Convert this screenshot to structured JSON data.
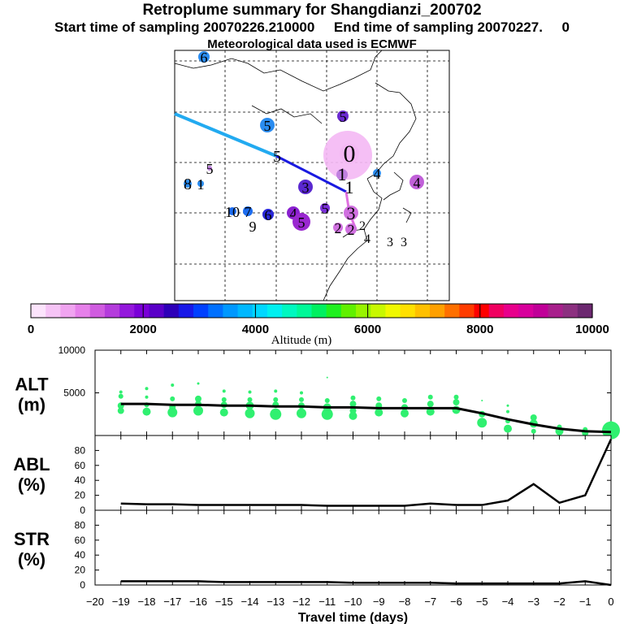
{
  "header": {
    "title": "Retroplume summary for Shangdianzi_200702",
    "times": "Start time of sampling 20070226.210000     End time of sampling 20070227.     0",
    "met": "Meteorological data used is ECMWF"
  },
  "colorbar": {
    "label": "Altitude (m)",
    "min": 0,
    "max": 10000,
    "tick_labels": [
      "0",
      "2000",
      "4000",
      "6000",
      "8000",
      "10000"
    ],
    "tick_values": [
      0,
      2000,
      4000,
      6000,
      8000,
      10000
    ],
    "colors": [
      "#fce4fc",
      "#f6c4f6",
      "#f0a4f0",
      "#e680ea",
      "#d05ce0",
      "#b43cdc",
      "#9418dc",
      "#7a00d8",
      "#5a00c8",
      "#2e00b8",
      "#1818e8",
      "#0040ff",
      "#0070ff",
      "#0098ff",
      "#00b8ff",
      "#00d8ff",
      "#00f0f0",
      "#00f8c0",
      "#00f898",
      "#00f060",
      "#20f020",
      "#60f000",
      "#98f400",
      "#c8f800",
      "#f0f800",
      "#ffe000",
      "#ffc000",
      "#ffa000",
      "#ff7000",
      "#ff3c00",
      "#ff0000",
      "#f00060",
      "#e8008c",
      "#d8009c",
      "#c00098",
      "#a8208c",
      "#8c3080",
      "#6c2870"
    ]
  },
  "chart_data": [
    {
      "type": "map",
      "title": "Retroplume map",
      "plume_track": [
        {
          "segment": "light-blue",
          "color": "#22aaf0"
        },
        {
          "segment": "blue",
          "color": "#1a1ae0"
        },
        {
          "segment": "pink",
          "color": "#e070e0"
        }
      ],
      "source_blob_color": "#f4b8f4",
      "markers": [
        {
          "label": "6",
          "color": "#2a8cf0"
        },
        {
          "label": "5",
          "color": "#6a2ad0"
        },
        {
          "label": "5",
          "color": "#2a8cf0"
        },
        {
          "label": "0",
          "color": "#f4b8f4"
        },
        {
          "label": "1",
          "color": "#c080e0"
        },
        {
          "label": "5",
          "color": "#2a8cf0"
        },
        {
          "label": "4",
          "color": "#2a8cf0"
        },
        {
          "label": "8",
          "color": "#2a8cf0"
        },
        {
          "label": "1",
          "color": "#2a8cf0"
        },
        {
          "label": "3",
          "color": "#5a28d0"
        },
        {
          "label": "4",
          "color": "#c060d8"
        },
        {
          "label": "1",
          "color": "#c080e0"
        },
        {
          "label": "5",
          "color": "#c080e0"
        },
        {
          "label": "10",
          "color": "#1c6cf0"
        },
        {
          "label": "7",
          "color": "#1c6cf0"
        },
        {
          "label": "9",
          "color": "#1c6cf0"
        },
        {
          "label": "6",
          "color": "#2a28d8"
        },
        {
          "label": "4",
          "color": "#8a20d0"
        },
        {
          "label": "5",
          "color": "#9a28d0"
        },
        {
          "label": "5",
          "color": "#7a30d8"
        },
        {
          "label": "3",
          "color": "#d070e0"
        },
        {
          "label": "2",
          "color": "#d070e0"
        },
        {
          "label": "2",
          "color": "#d070e0"
        },
        {
          "label": "4",
          "color": "#e0a0e8"
        },
        {
          "label": "3",
          "color": "#f0c8f0"
        },
        {
          "label": "3",
          "color": "#f0c8f0"
        },
        {
          "label": "2",
          "color": "#d070e0"
        }
      ]
    },
    {
      "type": "line",
      "title": "ALT",
      "ylabel": "ALT\n(m)",
      "ylabel_lines": [
        "ALT",
        "(m)"
      ],
      "ylim": [
        0,
        10000
      ],
      "yticks": [
        5000,
        10000
      ],
      "ytick_labels": [
        "5000",
        "10000"
      ],
      "x": [
        -19,
        -18,
        -17,
        -16,
        -15,
        -14,
        -13,
        -12,
        -11,
        -10,
        -9,
        -8,
        -7,
        -6,
        -5,
        -4,
        -3,
        -2,
        -1,
        0
      ],
      "series": [
        {
          "name": "median altitude",
          "values": [
            3700,
            3700,
            3600,
            3600,
            3500,
            3500,
            3400,
            3400,
            3300,
            3300,
            3200,
            3200,
            3200,
            3200,
            2600,
            1900,
            1300,
            800,
            500,
            400
          ]
        }
      ],
      "scatter_color": "#30f070",
      "scatter": [
        [
          -19,
          2900,
          4
        ],
        [
          -19,
          3500,
          4
        ],
        [
          -19,
          4600,
          3
        ],
        [
          -19,
          5100,
          2
        ],
        [
          -18,
          2800,
          5
        ],
        [
          -18,
          3600,
          3
        ],
        [
          -18,
          4500,
          2
        ],
        [
          -18,
          5500,
          2
        ],
        [
          -17,
          2700,
          6
        ],
        [
          -17,
          3300,
          4
        ],
        [
          -17,
          4300,
          3
        ],
        [
          -17,
          5900,
          2
        ],
        [
          -16,
          2900,
          6
        ],
        [
          -16,
          3700,
          4
        ],
        [
          -16,
          4300,
          4
        ],
        [
          -16,
          6100,
          1.5
        ],
        [
          -15,
          2700,
          5
        ],
        [
          -15,
          3600,
          4
        ],
        [
          -15,
          4200,
          3
        ],
        [
          -15,
          5200,
          2
        ],
        [
          -14,
          2600,
          6
        ],
        [
          -14,
          3500,
          5
        ],
        [
          -14,
          4200,
          3
        ],
        [
          -14,
          5100,
          2
        ],
        [
          -13,
          2500,
          7
        ],
        [
          -13,
          3600,
          4
        ],
        [
          -13,
          4200,
          3
        ],
        [
          -13,
          5200,
          2
        ],
        [
          -12,
          2600,
          6
        ],
        [
          -12,
          3500,
          4
        ],
        [
          -12,
          4200,
          3
        ],
        [
          -12,
          5000,
          2
        ],
        [
          -11,
          2500,
          7
        ],
        [
          -11,
          3300,
          5
        ],
        [
          -11,
          4100,
          3
        ],
        [
          -11,
          6800,
          1
        ],
        [
          -10,
          2300,
          5
        ],
        [
          -10,
          2900,
          4
        ],
        [
          -10,
          3700,
          4
        ],
        [
          -10,
          4400,
          3
        ],
        [
          -9,
          2700,
          5
        ],
        [
          -9,
          3500,
          4
        ],
        [
          -9,
          4300,
          3
        ],
        [
          -8,
          2600,
          5
        ],
        [
          -8,
          3300,
          4
        ],
        [
          -8,
          4100,
          3
        ],
        [
          -7,
          2800,
          5
        ],
        [
          -7,
          3700,
          4
        ],
        [
          -7,
          4500,
          3
        ],
        [
          -6,
          3000,
          5
        ],
        [
          -6,
          3900,
          4
        ],
        [
          -6,
          4500,
          3
        ],
        [
          -5,
          1500,
          6
        ],
        [
          -5,
          2500,
          4
        ],
        [
          -5,
          4100,
          1
        ],
        [
          -4,
          800,
          5
        ],
        [
          -4,
          1700,
          3
        ],
        [
          -4,
          2800,
          2
        ],
        [
          -4,
          3500,
          1.5
        ],
        [
          -3,
          1400,
          5
        ],
        [
          -3,
          500,
          3
        ],
        [
          -3,
          2100,
          4
        ],
        [
          -2,
          500,
          5
        ],
        [
          -2,
          1000,
          3
        ],
        [
          -1,
          300,
          4
        ],
        [
          -1,
          700,
          3
        ],
        [
          0,
          600,
          11
        ],
        [
          0,
          200,
          5
        ],
        [
          0,
          1400,
          3
        ]
      ]
    },
    {
      "type": "line",
      "title": "ABL",
      "ylabel": "ABL\n(%)",
      "ylabel_lines": [
        "ABL",
        "(%)"
      ],
      "ylim": [
        0,
        100
      ],
      "yticks": [
        0,
        20,
        40,
        60,
        80
      ],
      "ytick_labels": [
        "0",
        "20",
        "40",
        "60",
        "80"
      ],
      "x": [
        -19,
        -18,
        -17,
        -16,
        -15,
        -14,
        -13,
        -12,
        -11,
        -10,
        -9,
        -8,
        -7,
        -6,
        -5,
        -4,
        -3,
        -2,
        -1,
        0
      ],
      "series": [
        {
          "name": "ABL fraction",
          "values": [
            9,
            8,
            8,
            7,
            7,
            7,
            7,
            7,
            6,
            6,
            6,
            6,
            9,
            7,
            7,
            13,
            35,
            10,
            20,
            95
          ]
        }
      ]
    },
    {
      "type": "line",
      "title": "STR",
      "ylabel": "STR\n(%)",
      "ylabel_lines": [
        "STR",
        "(%)"
      ],
      "ylim": [
        0,
        100
      ],
      "yticks": [
        0,
        20,
        40,
        60,
        80
      ],
      "ytick_labels": [
        "0",
        "20",
        "40",
        "60",
        "80"
      ],
      "x": [
        -19,
        -18,
        -17,
        -16,
        -15,
        -14,
        -13,
        -12,
        -11,
        -10,
        -9,
        -8,
        -7,
        -6,
        -5,
        -4,
        -3,
        -2,
        -1,
        0
      ],
      "series": [
        {
          "name": "stratospheric fraction",
          "values": [
            5,
            5,
            5,
            5,
            4,
            4,
            4,
            4,
            4,
            3,
            3,
            3,
            3,
            2,
            2,
            2,
            2,
            2,
            5,
            0
          ]
        }
      ],
      "xlabel": "Travel time (days)",
      "xlim": [
        -20,
        0
      ],
      "xticks": [
        -20,
        -19,
        -18,
        -17,
        -16,
        -15,
        -14,
        -13,
        -12,
        -11,
        -10,
        -9,
        -8,
        -7,
        -6,
        -5,
        -4,
        -3,
        -2,
        -1,
        0
      ],
      "xtick_labels": [
        "−20",
        "−19",
        "−18",
        "−17",
        "−16",
        "−15",
        "−14",
        "−13",
        "−12",
        "−11",
        "−10",
        "−9",
        "−8",
        "−7",
        "−6",
        "−5",
        "−4",
        "−3",
        "−2",
        "−1",
        "0"
      ]
    }
  ]
}
